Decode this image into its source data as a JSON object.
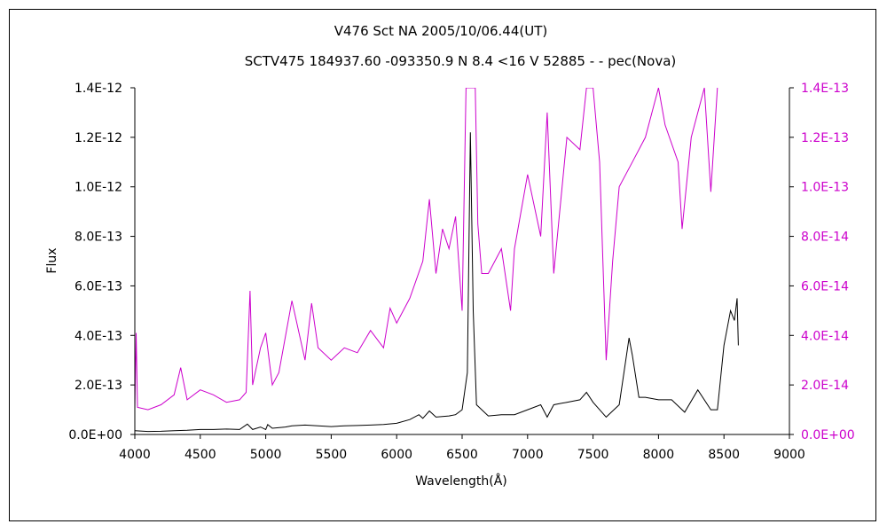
{
  "chart_data": {
    "type": "line",
    "title": "V476 Sct    NA    2005/10/06.44(UT)",
    "subtitle": "SCTV475 184937.60 -093350.9 N 8.4 <16 V 52885 - - pec(Nova)",
    "xlabel": "Wavelength(Å)",
    "ylabel": "Flux",
    "xlim": [
      4000,
      9000
    ],
    "ylim_left": [
      0,
      1.4e-12
    ],
    "ylim_right": [
      0,
      1.4e-13
    ],
    "x_ticks": [
      "4000",
      "4500",
      "5000",
      "5500",
      "6000",
      "6500",
      "7000",
      "7500",
      "8000",
      "8500",
      "9000"
    ],
    "y_ticks_left": [
      "0.0E+00",
      "2.0E-13",
      "4.0E-13",
      "6.0E-13",
      "8.0E-13",
      "1.0E-12",
      "1.2E-12",
      "1.4E-12"
    ],
    "y_ticks_right": [
      "0.0E+00",
      "2.0E-14",
      "4.0E-14",
      "6.0E-14",
      "8.0E-14",
      "1.0E-13",
      "1.2E-13",
      "1.4E-13"
    ],
    "grid": false,
    "series": [
      {
        "axis": "left",
        "color": "#000000",
        "points": [
          [
            4000,
            1.5e-14
          ],
          [
            4100,
            1.2e-14
          ],
          [
            4200,
            1.3e-14
          ],
          [
            4300,
            1.5e-14
          ],
          [
            4400,
            1.7e-14
          ],
          [
            4500,
            2e-14
          ],
          [
            4600,
            2e-14
          ],
          [
            4700,
            2.2e-14
          ],
          [
            4800,
            2e-14
          ],
          [
            4860,
            4.2e-14
          ],
          [
            4900,
            2e-14
          ],
          [
            4960,
            3e-14
          ],
          [
            5000,
            2e-14
          ],
          [
            5015,
            4e-14
          ],
          [
            5050,
            2.5e-14
          ],
          [
            5150,
            3e-14
          ],
          [
            5200,
            3.5e-14
          ],
          [
            5300,
            3.8e-14
          ],
          [
            5400,
            3.5e-14
          ],
          [
            5500,
            3.2e-14
          ],
          [
            5600,
            3.5e-14
          ],
          [
            5700,
            3.6e-14
          ],
          [
            5800,
            3.8e-14
          ],
          [
            5900,
            4e-14
          ],
          [
            6000,
            4.5e-14
          ],
          [
            6100,
            6e-14
          ],
          [
            6170,
            8e-14
          ],
          [
            6200,
            6.5e-14
          ],
          [
            6250,
            9.5e-14
          ],
          [
            6300,
            7e-14
          ],
          [
            6400,
            7.5e-14
          ],
          [
            6450,
            8e-14
          ],
          [
            6500,
            1e-13
          ],
          [
            6540,
            2.5e-13
          ],
          [
            6563,
            1.22e-12
          ],
          [
            6585,
            5e-13
          ],
          [
            6610,
            1.2e-13
          ],
          [
            6700,
            7.5e-14
          ],
          [
            6800,
            8e-14
          ],
          [
            6900,
            8e-14
          ],
          [
            7000,
            1e-13
          ],
          [
            7100,
            1.2e-13
          ],
          [
            7150,
            7e-14
          ],
          [
            7200,
            1.2e-13
          ],
          [
            7300,
            1.3e-13
          ],
          [
            7400,
            1.4e-13
          ],
          [
            7450,
            1.7e-13
          ],
          [
            7500,
            1.3e-13
          ],
          [
            7600,
            7e-14
          ],
          [
            7700,
            1.2e-13
          ],
          [
            7775,
            3.9e-13
          ],
          [
            7800,
            3.2e-13
          ],
          [
            7850,
            1.5e-13
          ],
          [
            7900,
            1.5e-13
          ],
          [
            8000,
            1.4e-13
          ],
          [
            8100,
            1.4e-13
          ],
          [
            8200,
            9e-14
          ],
          [
            8300,
            1.8e-13
          ],
          [
            8400,
            1e-13
          ],
          [
            8450,
            1e-13
          ],
          [
            8500,
            3.6e-13
          ],
          [
            8550,
            5e-13
          ],
          [
            8580,
            4.6e-13
          ],
          [
            8600,
            5.5e-13
          ],
          [
            8610,
            3.6e-13
          ]
        ]
      },
      {
        "axis": "right",
        "color": "#cc00cc",
        "points": [
          [
            4000,
            1e-14
          ],
          [
            4010,
            4.1e-14
          ],
          [
            4020,
            1.1e-14
          ],
          [
            4100,
            1e-14
          ],
          [
            4200,
            1.2e-14
          ],
          [
            4300,
            1.6e-14
          ],
          [
            4350,
            2.7e-14
          ],
          [
            4400,
            1.4e-14
          ],
          [
            4500,
            1.8e-14
          ],
          [
            4600,
            1.6e-14
          ],
          [
            4700,
            1.3e-14
          ],
          [
            4800,
            1.4e-14
          ],
          [
            4850,
            1.7e-14
          ],
          [
            4880,
            5.8e-14
          ],
          [
            4900,
            2e-14
          ],
          [
            4960,
            3.5e-14
          ],
          [
            5000,
            4.1e-14
          ],
          [
            5050,
            2e-14
          ],
          [
            5100,
            2.5e-14
          ],
          [
            5200,
            5.4e-14
          ],
          [
            5300,
            3e-14
          ],
          [
            5350,
            5.3e-14
          ],
          [
            5400,
            3.5e-14
          ],
          [
            5500,
            3e-14
          ],
          [
            5600,
            3.5e-14
          ],
          [
            5700,
            3.3e-14
          ],
          [
            5800,
            4.2e-14
          ],
          [
            5900,
            3.5e-14
          ],
          [
            5950,
            5.1e-14
          ],
          [
            6000,
            4.5e-14
          ],
          [
            6100,
            5.5e-14
          ],
          [
            6200,
            7e-14
          ],
          [
            6250,
            9.5e-14
          ],
          [
            6300,
            6.5e-14
          ],
          [
            6350,
            8.3e-14
          ],
          [
            6400,
            7.5e-14
          ],
          [
            6450,
            8.8e-14
          ],
          [
            6500,
            5e-14
          ],
          [
            6530,
            1.4e-13
          ],
          [
            6600,
            1.4e-13
          ],
          [
            6620,
            8.5e-14
          ],
          [
            6650,
            6.5e-14
          ],
          [
            6700,
            6.5e-14
          ],
          [
            6750,
            7e-14
          ],
          [
            6800,
            7.5e-14
          ],
          [
            6870,
            5e-14
          ],
          [
            6900,
            7.5e-14
          ],
          [
            7000,
            1.05e-13
          ],
          [
            7100,
            8e-14
          ],
          [
            7150,
            1.3e-13
          ],
          [
            7200,
            6.5e-14
          ],
          [
            7300,
            1.2e-13
          ],
          [
            7400,
            1.15e-13
          ],
          [
            7450,
            1.4e-13
          ],
          [
            7500,
            1.4e-13
          ],
          [
            7550,
            1.1e-13
          ],
          [
            7600,
            3e-14
          ],
          [
            7650,
            7e-14
          ],
          [
            7700,
            1e-13
          ],
          [
            7800,
            1.1e-13
          ],
          [
            7900,
            1.2e-13
          ],
          [
            8000,
            1.4e-13
          ],
          [
            8050,
            1.25e-13
          ],
          [
            8150,
            1.1e-13
          ],
          [
            8180,
            8.3e-14
          ],
          [
            8250,
            1.2e-13
          ],
          [
            8350,
            1.4e-13
          ],
          [
            8400,
            9.8e-14
          ],
          [
            8450,
            1.4e-13
          ]
        ]
      }
    ]
  }
}
